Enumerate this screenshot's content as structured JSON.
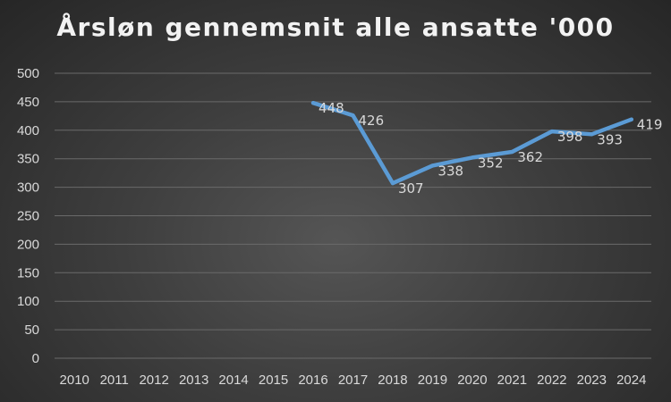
{
  "chart_data": {
    "type": "line",
    "title": "Årsløn gennemsnit alle ansatte '000",
    "xlabel": "",
    "ylabel": "",
    "categories": [
      "2010",
      "2011",
      "2012",
      "2013",
      "2014",
      "2015",
      "2016",
      "2017",
      "2018",
      "2019",
      "2020",
      "2021",
      "2022",
      "2023",
      "2024"
    ],
    "series": [
      {
        "values": [
          null,
          null,
          null,
          null,
          null,
          null,
          448,
          426,
          307,
          338,
          352,
          362,
          398,
          393,
          419
        ]
      }
    ],
    "data_labels": [
      null,
      null,
      null,
      null,
      null,
      null,
      "448",
      "426",
      "307",
      "338",
      "352",
      "362",
      "398",
      "393",
      "419"
    ],
    "ylim": [
      0,
      500
    ],
    "yticks": [
      "0",
      "50",
      "100",
      "150",
      "200",
      "250",
      "300",
      "350",
      "400",
      "450",
      "500"
    ],
    "grid": true,
    "legend": "none",
    "line_color": "#5b9bd5"
  }
}
